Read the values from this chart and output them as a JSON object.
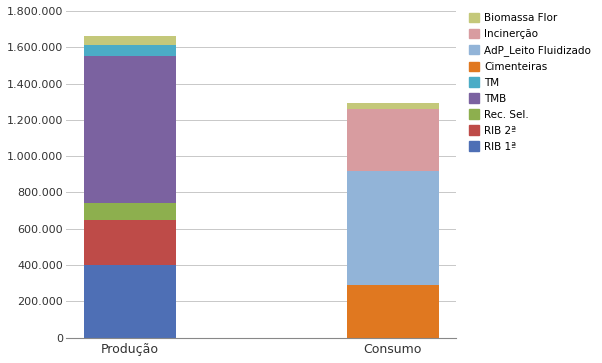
{
  "categories": [
    "Produção",
    "Consumo"
  ],
  "series": [
    {
      "label": "RIB 1ª",
      "color": "#4E6FB5",
      "values": [
        400000,
        0
      ]
    },
    {
      "label": "RIB 2ª",
      "color": "#BE4B48",
      "values": [
        250000,
        0
      ]
    },
    {
      "label": "Rec. Sel.",
      "color": "#8DAF4E",
      "values": [
        90000,
        0
      ]
    },
    {
      "label": "TMB",
      "color": "#7B62A0",
      "values": [
        810000,
        0
      ]
    },
    {
      "label": "TM",
      "color": "#4BACC6",
      "values": [
        60000,
        0
      ]
    },
    {
      "label": "Cimenteiras",
      "color": "#E07820",
      "values": [
        0,
        290000
      ]
    },
    {
      "label": "AdP_Leito Fluidizado",
      "color": "#92B4D8",
      "values": [
        0,
        630000
      ]
    },
    {
      "label": "Incinerção",
      "color": "#D89CA0",
      "values": [
        0,
        340000
      ]
    },
    {
      "label": "Biomassa Flor",
      "color": "#C4C87A",
      "values": [
        50000,
        35000
      ]
    }
  ],
  "ylim": [
    0,
    1800000
  ],
  "yticks": [
    0,
    200000,
    400000,
    600000,
    800000,
    1000000,
    1200000,
    1400000,
    1600000,
    1800000
  ],
  "ytick_labels": [
    "0",
    "200.000",
    "400.000",
    "600.000",
    "800.000",
    "1.000.000",
    "1.200.000",
    "1.400.000",
    "1.600.000",
    "1.800.000"
  ],
  "background_color": "#FFFFFF",
  "plot_bg_color": "#FFFFFF",
  "grid_color": "#C8C8C8",
  "bar_width": 0.35,
  "figsize": [
    6.02,
    3.63
  ],
  "dpi": 100,
  "legend_order": [
    "Biomassa Flor",
    "Incinerção",
    "AdP_Leito Fluidizado",
    "Cimenteiras",
    "TM",
    "TMB",
    "Rec. Sel.",
    "RIB 2ª",
    "RIB 1ª"
  ]
}
